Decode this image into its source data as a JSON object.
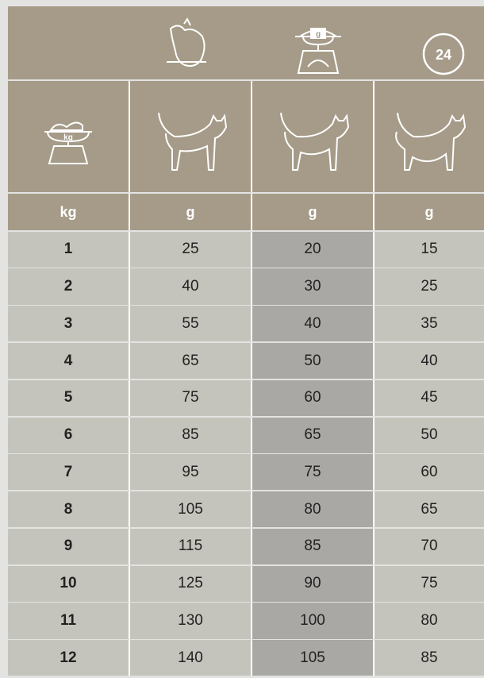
{
  "icons": {
    "scale_label": "g",
    "clock_label": "24",
    "cat_scale_label": "kg"
  },
  "table": {
    "units": [
      "kg",
      "g",
      "g",
      "g"
    ],
    "rows": [
      [
        1,
        25,
        20,
        15
      ],
      [
        2,
        40,
        30,
        25
      ],
      [
        3,
        55,
        40,
        35
      ],
      [
        4,
        65,
        50,
        40
      ],
      [
        5,
        75,
        60,
        45
      ],
      [
        6,
        85,
        65,
        50
      ],
      [
        7,
        95,
        75,
        60
      ],
      [
        8,
        105,
        80,
        65
      ],
      [
        9,
        115,
        85,
        70
      ],
      [
        10,
        125,
        90,
        75
      ],
      [
        11,
        130,
        100,
        80
      ],
      [
        12,
        140,
        105,
        85
      ]
    ]
  }
}
